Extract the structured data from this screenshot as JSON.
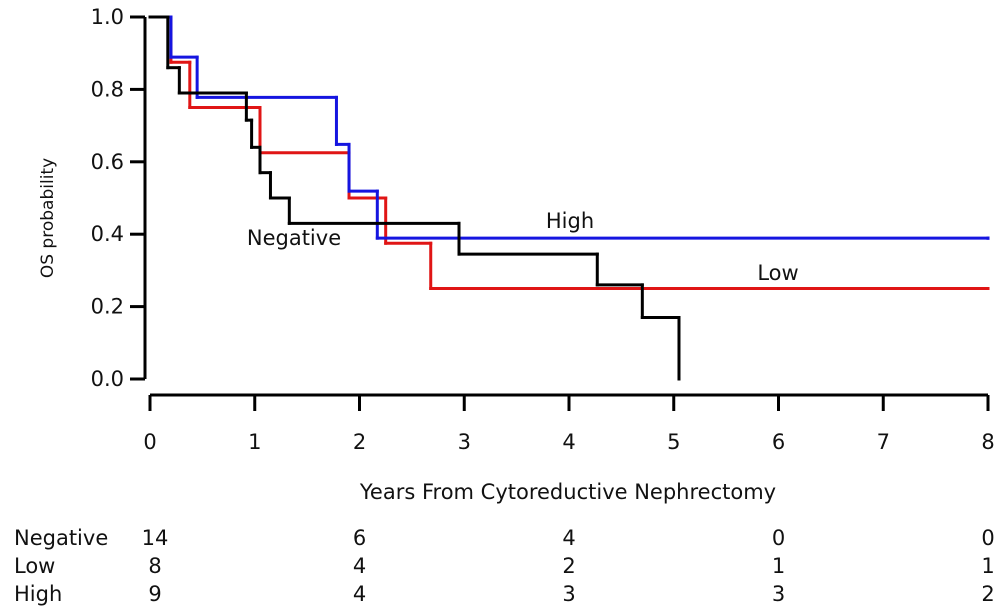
{
  "chart_data": {
    "type": "step",
    "x_label": "Years From Cytoreductive Nephrectomy",
    "y_label": "OS probability",
    "xlim": [
      0,
      8
    ],
    "ylim": [
      0,
      1
    ],
    "xticks": [
      0,
      1,
      2,
      3,
      4,
      5,
      6,
      7,
      8
    ],
    "yticks": [
      {
        "value": 0,
        "label": "0.0"
      },
      0.2,
      0.4,
      0.6,
      0.8,
      {
        "value": 1,
        "label": "1.0"
      }
    ],
    "series": [
      {
        "name": "Negative",
        "color": "#000000",
        "x": [
          0,
          0.17,
          0.28,
          0.92,
          0.97,
          1.05,
          1.15,
          1.33,
          2.95,
          4.27,
          4.7,
          5.05
        ],
        "values": [
          1,
          0.86,
          0.79,
          0.715,
          0.64,
          0.57,
          0.5,
          0.43,
          0.345,
          0.26,
          0.17,
          0
        ]
      },
      {
        "name": "Low",
        "color": "#e01515",
        "x": [
          0,
          0.2,
          0.38,
          1.05,
          1.9,
          2.25,
          2.68,
          8
        ],
        "values": [
          1,
          0.875,
          0.75,
          0.625,
          0.5,
          0.375,
          0.25,
          0.25
        ]
      },
      {
        "name": "High",
        "color": "#1515e0",
        "x": [
          0,
          0.2,
          0.45,
          1.78,
          1.9,
          2.17,
          8
        ],
        "values": [
          1,
          0.889,
          0.778,
          0.648,
          0.519,
          0.389,
          0.389
        ]
      }
    ],
    "risk_table": [
      {
        "name": "Negative",
        "counts": [
          14,
          6,
          4,
          0,
          0
        ]
      },
      {
        "name": "Low",
        "counts": [
          8,
          4,
          2,
          1,
          1
        ]
      },
      {
        "name": "High",
        "counts": [
          9,
          4,
          3,
          3,
          2
        ]
      }
    ]
  }
}
